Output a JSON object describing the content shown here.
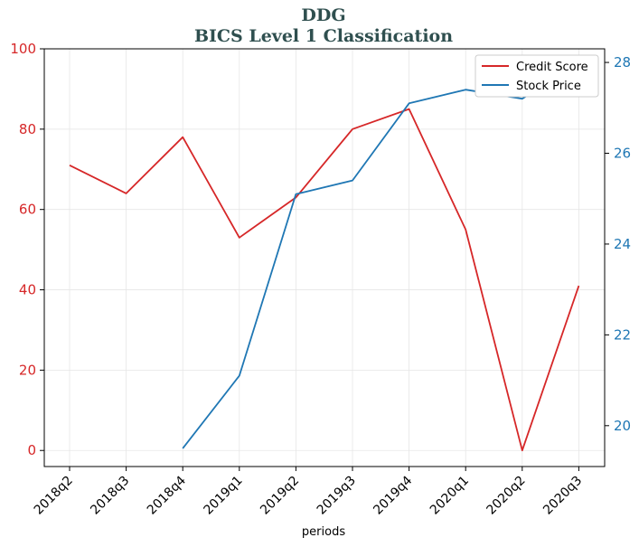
{
  "chart_data": {
    "type": "line",
    "title": "DDG",
    "subtitle": "BICS Level 1 Classification",
    "xlabel": "periods",
    "categories": [
      "2018q2",
      "2018q3",
      "2018q4",
      "2019q1",
      "2019q2",
      "2019q3",
      "2019q4",
      "2020q1",
      "2020q2",
      "2020q3"
    ],
    "y_left": {
      "ylim": [
        -4,
        100
      ],
      "ticks": [
        0,
        20,
        40,
        60,
        80,
        100
      ]
    },
    "y_right": {
      "ylim": [
        19.1,
        28.3
      ],
      "ticks": [
        20,
        22,
        24,
        26,
        28
      ]
    },
    "series": [
      {
        "name": "Credit Score",
        "axis": "left",
        "color": "#d62728",
        "values": [
          71,
          64,
          78,
          53,
          63,
          80,
          85,
          55,
          0,
          41
        ]
      },
      {
        "name": "Stock Price",
        "axis": "right",
        "color": "#1f77b4",
        "values": [
          null,
          null,
          19.5,
          21.1,
          25.1,
          25.4,
          27.1,
          27.4,
          27.2,
          28.0
        ]
      }
    ],
    "grid": true,
    "legend": "top-right",
    "colors": {
      "title": "#2f4f4f",
      "left_axis": "#d62728",
      "right_axis": "#1f77b4"
    }
  }
}
